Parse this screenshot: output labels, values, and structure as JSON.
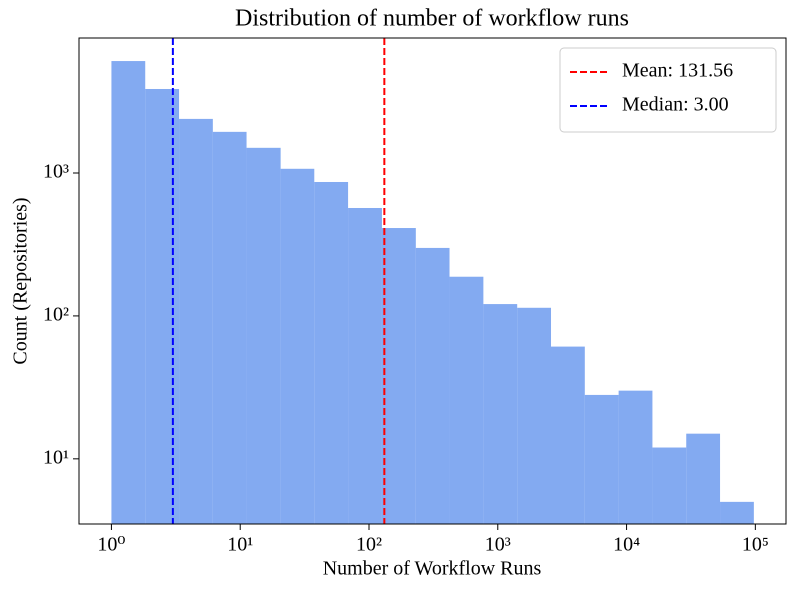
{
  "chart_data": {
    "type": "histogram",
    "title": "Distribution of number of workflow runs",
    "xlabel": "Number of Workflow Runs",
    "ylabel": "Count (Repositories)",
    "bins": [
      1,
      1.83,
      3.35,
      6.13,
      11.2,
      20.6,
      37.6,
      68.8,
      126,
      231,
      422,
      773,
      1415,
      2590,
      4740,
      8677,
      15880,
      29070,
      53200,
      97380
    ],
    "values": [
      6070,
      3870,
      2390,
      1940,
      1500,
      1070,
      865,
      569,
      412,
      299,
      188,
      121,
      114,
      61,
      28,
      30,
      12,
      15,
      5
    ],
    "color": "#6495ed",
    "alpha": 0.8,
    "xscale": "log",
    "yscale": "log",
    "xlim": [
      0.56,
      173000
    ],
    "ylim": [
      3.5,
      8800
    ],
    "xticks": [
      {
        "value": 1,
        "label": "10⁰"
      },
      {
        "value": 10,
        "label": "10¹"
      },
      {
        "value": 100,
        "label": "10²"
      },
      {
        "value": 1000,
        "label": "10³"
      },
      {
        "value": 10000,
        "label": "10⁴"
      },
      {
        "value": 100000,
        "label": "10⁵"
      }
    ],
    "yticks": [
      {
        "value": 10,
        "label": "10¹"
      },
      {
        "value": 100,
        "label": "10²"
      },
      {
        "value": 1000,
        "label": "10³"
      }
    ],
    "vlines": [
      {
        "label": "Mean: 131.56",
        "value": 131.56,
        "color": "#ff0000"
      },
      {
        "label": "Median: 3.00",
        "value": 3.0,
        "color": "#0000ff"
      }
    ],
    "legend": "upper right"
  }
}
